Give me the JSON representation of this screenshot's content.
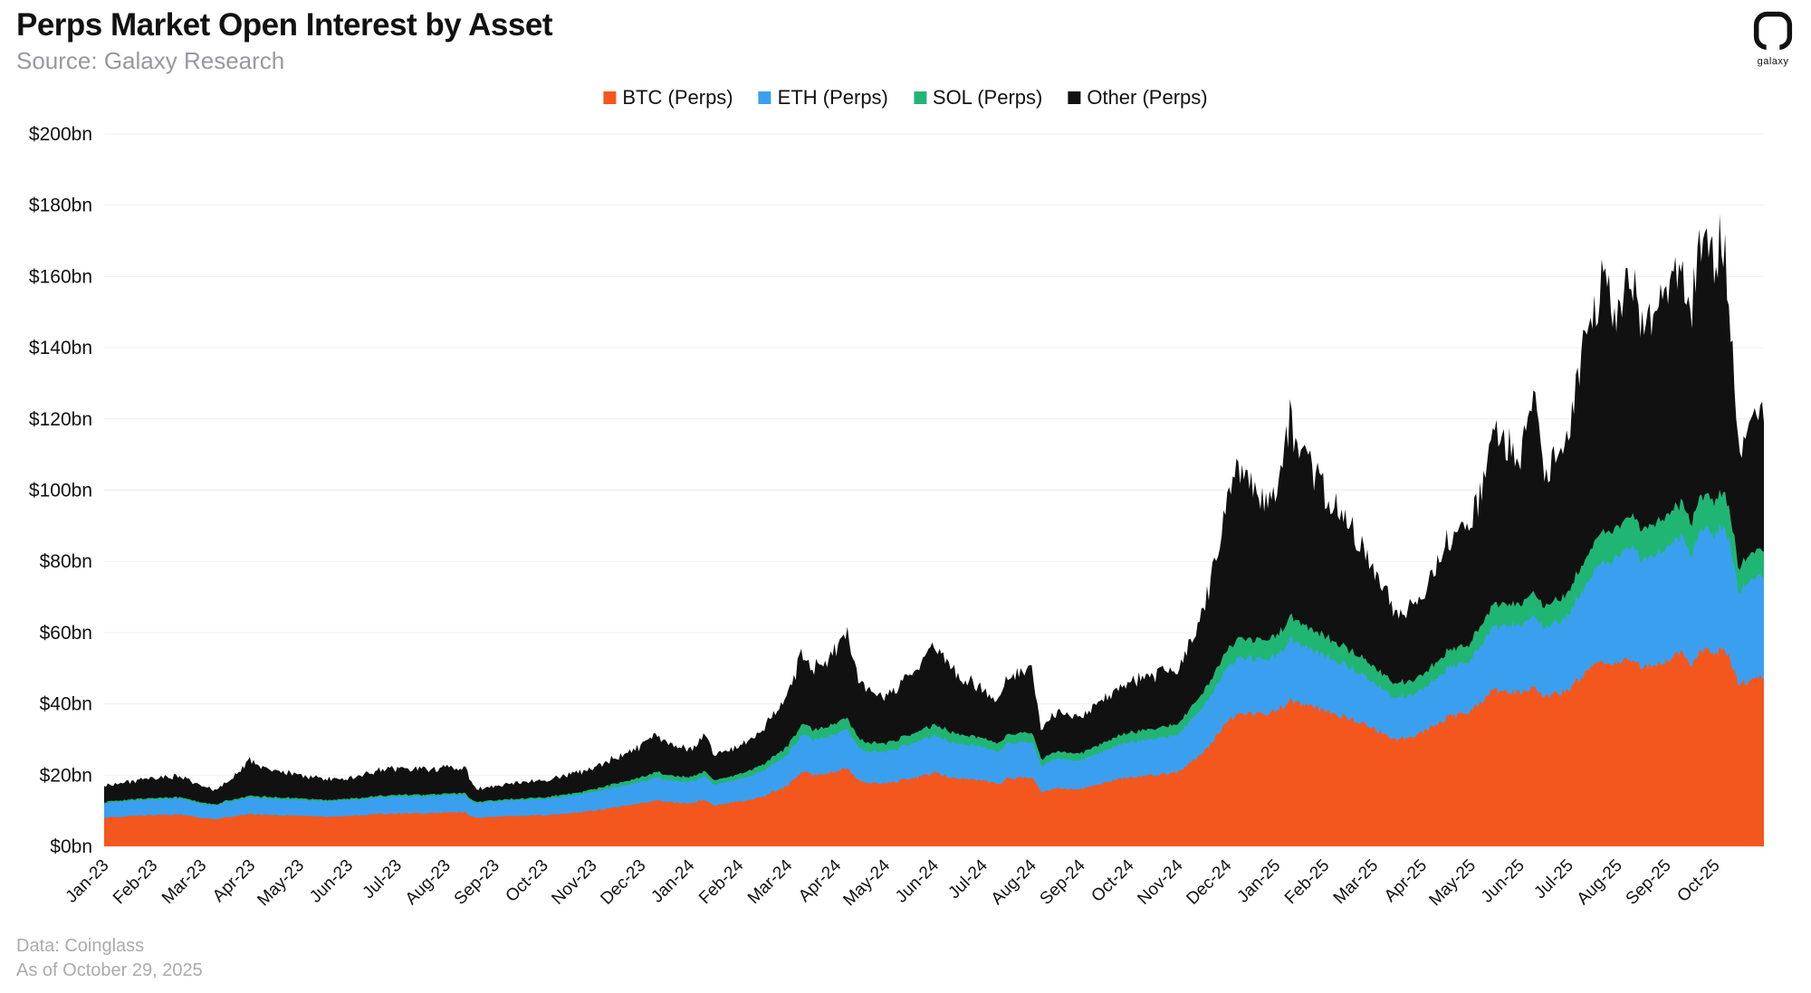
{
  "header": {
    "title": "Perps Market Open Interest by Asset",
    "source": "Source: Galaxy Research"
  },
  "logo": {
    "label": "galaxy"
  },
  "footer": {
    "data_source": "Data: Coinglass",
    "as_of": "As of October 29, 2025"
  },
  "chart_data": {
    "type": "area",
    "stacked": true,
    "title": "Perps Market Open Interest by Asset",
    "values_unit": "$bn",
    "ylim": [
      0,
      200
    ],
    "y_tick_step": 20,
    "y_ticks": [
      "$0bn",
      "$20bn",
      "$40bn",
      "$60bn",
      "$80bn",
      "$100bn",
      "$120bn",
      "$140bn",
      "$160bn",
      "$180bn",
      "$200bn"
    ],
    "x_tick_labels": [
      "Jan-23",
      "Feb-23",
      "Mar-23",
      "Apr-23",
      "May-23",
      "Jun-23",
      "Jul-23",
      "Aug-23",
      "Sep-23",
      "Oct-23",
      "Nov-23",
      "Dec-23",
      "Jan-24",
      "Feb-24",
      "Mar-24",
      "Apr-24",
      "May-24",
      "Jun-24",
      "Jul-24",
      "Aug-24",
      "Sep-24",
      "Oct-24",
      "Nov-24",
      "Dec-24",
      "Jan-25",
      "Feb-25",
      "Mar-25",
      "Apr-25",
      "May-25",
      "Jun-25",
      "Jul-25",
      "Aug-25",
      "Sep-25",
      "Oct-25"
    ],
    "legend_position": "top",
    "grid": "horizontal-faint",
    "x_unit": "months-since-Jan-23",
    "x": [
      0,
      0.5,
      1,
      1.5,
      2,
      2.3,
      2.5,
      3,
      3.5,
      4,
      4.5,
      5,
      5.5,
      6,
      6.5,
      7,
      7.4,
      7.6,
      8,
      8.5,
      9,
      9.5,
      10,
      10.5,
      11,
      11.3,
      11.5,
      12,
      12.3,
      12.5,
      13,
      13.5,
      14,
      14.3,
      14.5,
      15,
      15.2,
      15.5,
      16,
      16.5,
      17,
      17.5,
      18,
      18.3,
      18.5,
      19,
      19.2,
      19.5,
      20,
      20.5,
      21,
      21.5,
      22,
      22.5,
      23,
      23.3,
      23.5,
      24,
      24.3,
      24.5,
      25,
      25.5,
      26,
      26.5,
      27,
      27.5,
      28,
      28.3,
      28.5,
      29,
      29.3,
      29.5,
      30,
      30.3,
      30.5,
      30.7,
      31,
      31.3,
      31.5,
      32,
      32.3,
      32.5,
      32.7,
      33,
      33.2,
      33.5,
      33.7,
      34
    ],
    "series": [
      {
        "name": "BTC (Perps)",
        "color": "#F4571D",
        "values": [
          8,
          8.5,
          8.8,
          9,
          8,
          7.5,
          8.2,
          9,
          8.8,
          8.6,
          8.4,
          8.5,
          9,
          9.3,
          9.2,
          9.5,
          9.5,
          8,
          8.3,
          8.6,
          8.8,
          9.2,
          10,
          11,
          12,
          13,
          12.5,
          12,
          13,
          11.5,
          12.5,
          14,
          17,
          21,
          20,
          21,
          22,
          18,
          17.5,
          19,
          20.5,
          19,
          18.5,
          17.5,
          19,
          19.5,
          15,
          16.5,
          16,
          18,
          19.5,
          20,
          21,
          26,
          35,
          38,
          37,
          38,
          41,
          40,
          38,
          36,
          33,
          30,
          32,
          36,
          38,
          42,
          44,
          43,
          45,
          42,
          44,
          48,
          50,
          52,
          51,
          53,
          50,
          52,
          54,
          51,
          55,
          54,
          56,
          45,
          47,
          48
        ]
      },
      {
        "name": "ETH (Perps)",
        "color": "#3B9FF0",
        "values": [
          4,
          4.2,
          4.4,
          4.5,
          4,
          3.8,
          4.2,
          4.6,
          4.5,
          4.4,
          4.3,
          4.4,
          4.6,
          4.8,
          4.7,
          4.8,
          4.8,
          4,
          4.2,
          4.4,
          4.5,
          4.8,
          5.2,
          5.6,
          6,
          6.5,
          6.2,
          6,
          6.6,
          5.8,
          6.3,
          7.2,
          8.5,
          10.5,
          10,
          10.5,
          11,
          9,
          8.8,
          9.6,
          10.5,
          9.8,
          9.4,
          9,
          9.7,
          10,
          7.5,
          8.3,
          8,
          9,
          9.8,
          10.2,
          10.5,
          13,
          15,
          16,
          15.5,
          15.5,
          17,
          16.5,
          15.5,
          14.5,
          13,
          11.5,
          12,
          13.5,
          14.5,
          16.5,
          18,
          19,
          20,
          19,
          21,
          24,
          26,
          28,
          30,
          32,
          30,
          32,
          33,
          31,
          34,
          33,
          35,
          26,
          28,
          29
        ]
      },
      {
        "name": "SOL (Perps)",
        "color": "#21B573",
        "values": [
          0.4,
          0.4,
          0.4,
          0.4,
          0.4,
          0.3,
          0.4,
          0.5,
          0.5,
          0.5,
          0.4,
          0.4,
          0.4,
          0.5,
          0.5,
          0.5,
          0.5,
          0.4,
          0.4,
          0.4,
          0.5,
          0.6,
          0.8,
          1,
          1.3,
          1.5,
          1.4,
          1.3,
          1.5,
          1.2,
          1.4,
          1.8,
          2.4,
          3,
          2.8,
          3,
          3.2,
          2.5,
          2.4,
          2.7,
          3,
          2.7,
          2.5,
          2.4,
          2.6,
          2.7,
          1.8,
          2.1,
          2,
          2.4,
          2.7,
          2.9,
          3,
          4,
          5,
          5.5,
          5.2,
          5.5,
          6.5,
          6,
          5.5,
          5,
          4.5,
          4,
          4.2,
          4.8,
          5,
          5.8,
          6.2,
          6,
          6.5,
          6,
          6.5,
          7.5,
          8,
          8.5,
          8.5,
          9,
          8.5,
          9,
          9.5,
          9,
          9.5,
          9.5,
          10,
          7,
          7.5,
          7.5
        ]
      },
      {
        "name": "Other (Perps)",
        "color": "#111111",
        "values": [
          4.6,
          5,
          5.4,
          6,
          4.6,
          3.9,
          5.2,
          9.9,
          7.2,
          6.5,
          5.9,
          5.7,
          7,
          7.4,
          7.1,
          7.2,
          7.2,
          3.6,
          4.1,
          4.6,
          4.7,
          5.4,
          6,
          7.4,
          8.7,
          10,
          8.9,
          7.7,
          9.9,
          7.5,
          7.8,
          10,
          14.1,
          20.5,
          17.2,
          20.5,
          24.8,
          15.5,
          13.3,
          16.7,
          22,
          16.5,
          13.6,
          11.1,
          16.7,
          17.8,
          7.7,
          11.1,
          10,
          12.6,
          14,
          14.9,
          15.5,
          22,
          40,
          48.5,
          42.3,
          39,
          55.5,
          49.5,
          41,
          34.5,
          27.5,
          19.5,
          21.8,
          30.7,
          32.5,
          40.7,
          46.8,
          42,
          53.5,
          38,
          43.5,
          60.5,
          61,
          71.5,
          60.5,
          68,
          56.5,
          62,
          68.5,
          59,
          71.5,
          68.5,
          71,
          32,
          37.5,
          40.5
        ]
      }
    ]
  }
}
